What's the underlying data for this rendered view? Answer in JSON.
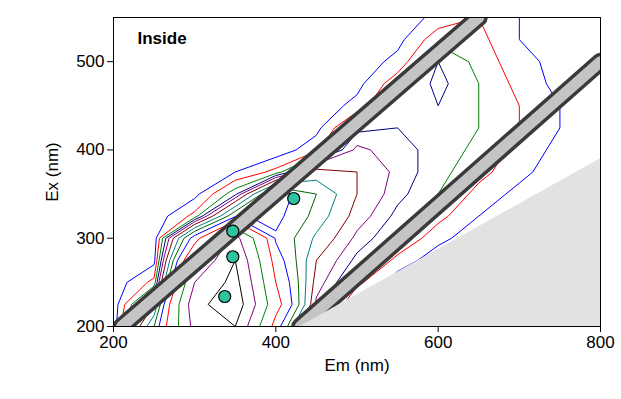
{
  "chart_data": {
    "type": "contour",
    "title": "Inside",
    "xlabel": "Em (nm)",
    "ylabel": "Ex (nm)",
    "xlim": [
      200,
      800
    ],
    "ylim": [
      200,
      550
    ],
    "xticks": [
      200,
      400,
      600,
      800
    ],
    "yticks": [
      200,
      300,
      400,
      500
    ],
    "grid": false,
    "intensity": {
      "em": [
        200,
        250,
        300,
        350,
        400,
        450,
        500,
        550,
        600,
        650,
        700,
        750,
        800
      ],
      "ex": [
        200,
        225,
        250,
        275,
        300,
        325,
        350,
        375,
        400,
        425,
        450,
        475,
        500,
        525,
        550
      ],
      "values": [
        [
          2,
          30,
          80,
          90,
          40,
          5,
          0,
          0,
          0,
          0,
          0,
          0,
          0
        ],
        [
          2,
          20,
          85,
          100,
          50,
          15,
          3,
          0,
          0,
          0,
          0,
          0,
          0
        ],
        [
          2,
          8,
          75,
          95,
          45,
          18,
          8,
          2,
          0,
          0,
          0,
          0,
          0
        ],
        [
          2,
          3,
          60,
          90,
          40,
          20,
          12,
          6,
          2,
          0,
          0,
          0,
          0
        ],
        [
          2,
          2,
          40,
          80,
          35,
          24,
          15,
          10,
          5,
          2,
          0,
          0,
          0
        ],
        [
          2,
          2,
          8,
          35,
          38,
          28,
          18,
          12,
          8,
          4,
          2,
          0,
          0
        ],
        [
          2,
          2,
          3,
          12,
          40,
          30,
          20,
          14,
          10,
          6,
          3,
          1,
          0
        ],
        [
          2,
          2,
          2,
          4,
          8,
          22,
          20,
          15,
          11,
          8,
          5,
          2,
          1
        ],
        [
          2,
          2,
          2,
          2,
          2,
          6,
          17,
          14,
          12,
          9,
          6,
          3,
          2
        ],
        [
          2,
          2,
          2,
          2,
          2,
          3,
          12,
          13,
          12,
          10,
          7,
          4,
          2
        ],
        [
          2,
          2,
          2,
          2,
          2,
          2,
          5,
          12,
          13,
          10,
          7,
          4,
          2
        ],
        [
          2,
          2,
          2,
          2,
          2,
          2,
          3,
          9,
          14,
          10,
          6,
          3,
          2
        ],
        [
          2,
          2,
          2,
          2,
          2,
          2,
          2,
          5,
          13,
          9,
          5,
          3,
          2
        ],
        [
          2,
          2,
          2,
          2,
          2,
          2,
          2,
          3,
          9,
          8,
          4,
          2,
          2
        ],
        [
          2,
          2,
          2,
          2,
          2,
          2,
          2,
          2,
          5,
          7,
          4,
          2,
          2
        ]
      ],
      "levels": [
        4,
        7,
        10,
        13,
        16,
        20,
        25,
        30,
        36,
        45,
        60,
        75,
        90
      ],
      "colors": [
        "#0000ff",
        "#ff0000",
        "#008000",
        "#000080",
        "#800080",
        "#800000",
        "#008080",
        "#006400",
        "#0000ff",
        "#ff0000",
        "#008000",
        "#800080",
        "#000000"
      ]
    },
    "scatter_bands": [
      {
        "em": [
          210,
          650
        ],
        "ex": [
          200,
          550
        ]
      },
      {
        "em": [
          430,
          800
        ],
        "ex": [
          200,
          500
        ]
      }
    ],
    "masked": {
      "em": [
        430,
        800
      ],
      "ex_lower": [
        200,
        200
      ],
      "ex_upper": [
        200,
        390
      ]
    },
    "points": {
      "x": [
        422,
        347,
        347,
        337
      ],
      "y": [
        345,
        308,
        279,
        234
      ],
      "color": "#2ec4a0",
      "marker": "circle"
    }
  }
}
